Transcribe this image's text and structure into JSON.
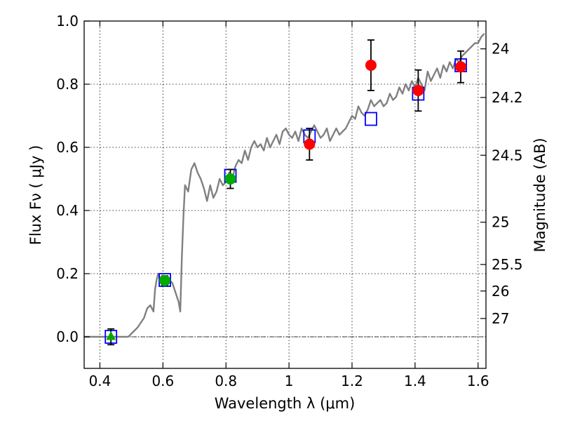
{
  "chart_data": {
    "type": "scatter",
    "title": "",
    "xlabel": "Wavelength  λ (μm)",
    "ylabel": "Flux  Fν  ( μJy )",
    "ylabel_right": "Magnitude (AB)",
    "xlim": [
      0.35,
      1.625
    ],
    "ylim": [
      -0.1,
      1.0
    ],
    "xticks": [
      0.4,
      0.6,
      0.8,
      1.0,
      1.2,
      1.4,
      1.6
    ],
    "xtick_labels": [
      "0.4",
      "0.6",
      "0.8",
      "1",
      "1.2",
      "1.4",
      "1.6"
    ],
    "yticks": [
      0.0,
      0.2,
      0.4,
      0.6,
      0.8,
      1.0
    ],
    "ytick_labels": [
      "0.0",
      "0.2",
      "0.4",
      "0.6",
      "0.8",
      "1.0"
    ],
    "right_ticks": [
      {
        "label": "24",
        "flux": 0.912
      },
      {
        "label": "24.2",
        "flux": 0.758
      },
      {
        "label": "24.5",
        "flux": 0.575
      },
      {
        "label": "25",
        "flux": 0.363
      },
      {
        "label": "25.5",
        "flux": 0.229
      },
      {
        "label": "26",
        "flux": 0.145
      },
      {
        "label": "27",
        "flux": 0.058
      }
    ],
    "grid": true,
    "zero_line": 0.0,
    "colors": {
      "model": "#808080",
      "synthetic": "#0000ff",
      "green_points": "#00aa00",
      "red_points": "#ff0000",
      "errorbar": "#000000"
    },
    "series": [
      {
        "kind": "model_spectrum",
        "x": [
          0.35,
          0.49,
          0.5,
          0.52,
          0.54,
          0.55,
          0.56,
          0.57,
          0.575,
          0.58,
          0.585,
          0.59,
          0.6,
          0.61,
          0.62,
          0.63,
          0.64,
          0.65,
          0.655,
          0.66,
          0.665,
          0.67,
          0.68,
          0.69,
          0.7,
          0.71,
          0.72,
          0.73,
          0.74,
          0.75,
          0.76,
          0.77,
          0.78,
          0.79,
          0.8,
          0.81,
          0.82,
          0.83,
          0.84,
          0.85,
          0.86,
          0.87,
          0.88,
          0.89,
          0.9,
          0.91,
          0.92,
          0.93,
          0.94,
          0.95,
          0.96,
          0.97,
          0.98,
          0.99,
          1.0,
          1.01,
          1.02,
          1.03,
          1.04,
          1.05,
          1.06,
          1.07,
          1.08,
          1.09,
          1.1,
          1.11,
          1.12,
          1.13,
          1.14,
          1.15,
          1.16,
          1.17,
          1.18,
          1.19,
          1.2,
          1.21,
          1.22,
          1.23,
          1.24,
          1.25,
          1.26,
          1.27,
          1.28,
          1.29,
          1.3,
          1.31,
          1.32,
          1.33,
          1.34,
          1.35,
          1.36,
          1.37,
          1.38,
          1.39,
          1.4,
          1.41,
          1.42,
          1.43,
          1.44,
          1.45,
          1.46,
          1.47,
          1.48,
          1.49,
          1.5,
          1.51,
          1.52,
          1.53,
          1.54,
          1.55,
          1.56,
          1.57,
          1.58,
          1.59,
          1.6,
          1.61,
          1.62
        ],
        "y": [
          0.0,
          0.0,
          0.01,
          0.03,
          0.06,
          0.09,
          0.1,
          0.08,
          0.15,
          0.18,
          0.2,
          0.19,
          0.17,
          0.19,
          0.18,
          0.17,
          0.14,
          0.11,
          0.08,
          0.25,
          0.38,
          0.48,
          0.46,
          0.53,
          0.55,
          0.52,
          0.5,
          0.47,
          0.43,
          0.48,
          0.44,
          0.46,
          0.5,
          0.48,
          0.49,
          0.52,
          0.5,
          0.54,
          0.56,
          0.55,
          0.59,
          0.56,
          0.6,
          0.62,
          0.6,
          0.61,
          0.59,
          0.63,
          0.6,
          0.62,
          0.64,
          0.61,
          0.65,
          0.66,
          0.64,
          0.63,
          0.65,
          0.62,
          0.66,
          0.64,
          0.63,
          0.65,
          0.67,
          0.65,
          0.63,
          0.64,
          0.66,
          0.62,
          0.64,
          0.66,
          0.64,
          0.65,
          0.66,
          0.68,
          0.7,
          0.69,
          0.73,
          0.71,
          0.7,
          0.72,
          0.75,
          0.73,
          0.74,
          0.75,
          0.73,
          0.74,
          0.77,
          0.75,
          0.76,
          0.79,
          0.77,
          0.8,
          0.78,
          0.81,
          0.79,
          0.82,
          0.8,
          0.78,
          0.84,
          0.81,
          0.83,
          0.85,
          0.82,
          0.86,
          0.84,
          0.87,
          0.85,
          0.88,
          0.87,
          0.89,
          0.9,
          0.91,
          0.92,
          0.93,
          0.93,
          0.95,
          0.96
        ]
      },
      {
        "kind": "synthetic_photometry",
        "marker": "open-square",
        "x": [
          0.435,
          0.606,
          0.814,
          1.065,
          1.26,
          1.41,
          1.545
        ],
        "y": [
          0.0,
          0.18,
          0.51,
          0.635,
          0.69,
          0.77,
          0.86
        ]
      },
      {
        "kind": "upper_limit",
        "marker": "triangle",
        "x": [
          0.435
        ],
        "y": [
          0.0
        ],
        "err": [
          0.025
        ]
      },
      {
        "kind": "observed_green",
        "marker": "circle",
        "x": [
          0.606,
          0.814
        ],
        "y": [
          0.178,
          0.5
        ],
        "err": [
          0.015,
          0.03
        ]
      },
      {
        "kind": "observed_red",
        "marker": "circle",
        "x": [
          1.065,
          1.26,
          1.41,
          1.545
        ],
        "y": [
          0.61,
          0.86,
          0.78,
          0.855
        ],
        "err": [
          0.05,
          0.08,
          0.065,
          0.05
        ]
      }
    ]
  }
}
